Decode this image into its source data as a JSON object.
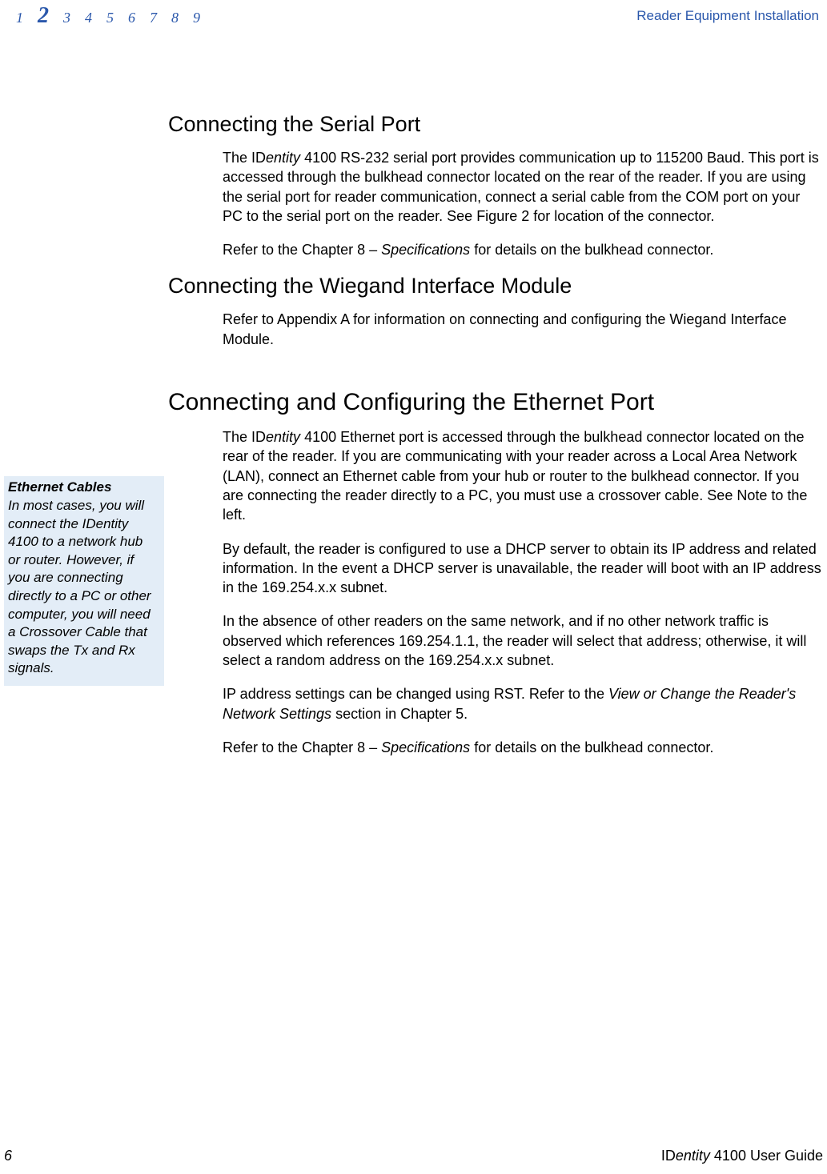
{
  "header": {
    "nav": [
      "1",
      "2",
      "3",
      "4",
      "5",
      "6",
      "7",
      "8",
      "9"
    ],
    "active_index": 1,
    "title": "Reader Equipment Installation"
  },
  "sections": {
    "serial": {
      "heading": "Connecting the Serial Port",
      "p1_a": "The ID",
      "p1_b": "entity",
      "p1_c": " 4100 RS-232 serial port provides communication up to 115200 Baud. This port is accessed through the bulkhead connector located on the rear of the reader. If you are using the serial port for reader communication, connect a serial cable from the COM port on your PC to the serial port on the reader. See Figure 2 for location of the connector.",
      "p2_a": "Refer to the Chapter 8 – ",
      "p2_b": "Specifications",
      "p2_c": " for details on the bulkhead connector."
    },
    "wiegand": {
      "heading": "Connecting the Wiegand Interface Module",
      "p1": "Refer to Appendix A for information on connecting and configuring the Wiegand Interface Module."
    },
    "ethernet": {
      "heading": "Connecting and Configuring the Ethernet Port",
      "p1_a": "The ID",
      "p1_b": "entity",
      "p1_c": " 4100 Ethernet port is accessed through the bulkhead connector located on the rear of the reader. If you are communicating with your reader across a Local Area Network (LAN), connect an Ethernet cable from your hub or router to the bulkhead connector. If you are connecting the reader directly to a PC, you must use a crossover cable. See Note to the left.",
      "p2": "By default, the reader is configured to use a DHCP server to obtain its IP address and related information.  In the event a DHCP server is unavailable, the reader will boot with an IP address in the 169.254.x.x subnet.",
      "p3": "In the absence of other readers on the same network, and if no other network traffic is observed which references 169.254.1.1, the reader will select that address; otherwise, it will select a random address on the 169.254.x.x subnet.",
      "p4_a": "IP address settings can be changed using RST. Refer to the ",
      "p4_b": "View or Change the Reader's Network Settings",
      "p4_c": " section in Chapter 5.",
      "p5_a": "Refer to the Chapter 8 – ",
      "p5_b": "Specifications",
      "p5_c": " for details on the bulkhead connector."
    }
  },
  "sidebar": {
    "title": "Ethernet Cables",
    "text": "In most cases, you will connect the IDentity 4100 to a network hub or router. However, if you are connecting directly to a PC or other computer, you will need a Crossover Cable that swaps the Tx and Rx signals."
  },
  "footer": {
    "page": "6",
    "title_a": "ID",
    "title_b": "entity",
    "title_c": " 4100 User Guide"
  },
  "colors": {
    "accent": "#2a57ab",
    "sidebar_bg": "#e3edf7",
    "text": "#000000",
    "bg": "#ffffff"
  }
}
